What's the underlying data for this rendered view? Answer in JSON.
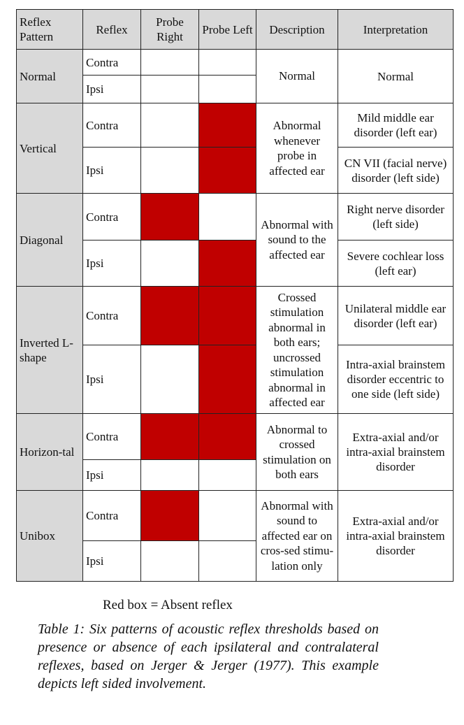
{
  "headers": [
    "Reflex Pattern",
    "Reflex",
    "Probe Right",
    "Probe Left",
    "Description",
    "Interpretation"
  ],
  "colors": {
    "absent": "#c00000",
    "header_bg": "#d9d9d9"
  },
  "rows": [
    {
      "pattern": "Normal",
      "reflex": "Contra",
      "right_absent": false,
      "left_absent": false,
      "desc": "Normal",
      "interp": "Normal"
    },
    {
      "reflex": "Ipsi",
      "right_absent": false,
      "left_absent": false
    },
    {
      "pattern": "Vertical",
      "reflex": "Contra",
      "right_absent": false,
      "left_absent": true,
      "desc": "Abnormal whenever probe in affected ear",
      "interp": "Mild middle ear disorder (left ear)"
    },
    {
      "reflex": "Ipsi",
      "right_absent": false,
      "left_absent": true,
      "interp": "CN VII (facial nerve) disorder (left side)"
    },
    {
      "pattern": "Diagonal",
      "reflex": "Contra",
      "right_absent": true,
      "left_absent": false,
      "desc": "Abnormal with sound to the affected ear",
      "interp": "Right nerve disorder (left side)"
    },
    {
      "reflex": "Ipsi",
      "right_absent": false,
      "left_absent": true,
      "interp": "Severe cochlear loss (left ear)"
    },
    {
      "pattern": "Inverted L-shape",
      "reflex": "Contra",
      "right_absent": true,
      "left_absent": true,
      "desc": "Crossed stimulation abnormal in both ears; uncrossed stimulation abnormal in affected ear",
      "interp": "Unilateral middle ear disorder (left ear)"
    },
    {
      "reflex": "Ipsi",
      "right_absent": false,
      "left_absent": true,
      "interp": "Intra-axial brainstem disorder eccentric to one side (left side)"
    },
    {
      "pattern": "Horizon-tal",
      "reflex": "Contra",
      "right_absent": true,
      "left_absent": true,
      "desc": "Abnormal to crossed stimulation on both ears",
      "interp": "Extra-axial and/or intra-axial brainstem disorder"
    },
    {
      "reflex": "Ipsi",
      "right_absent": false,
      "left_absent": false
    },
    {
      "pattern": "Unibox",
      "reflex": "Contra",
      "right_absent": true,
      "left_absent": false,
      "desc": "Abnormal with sound to affected ear on cros-sed stimu-lation only",
      "interp": "Extra-axial and/or intra-axial brainstem disorder"
    },
    {
      "reflex": "Ipsi",
      "right_absent": false,
      "left_absent": false
    }
  ],
  "legend": "Red box =  Absent reflex",
  "caption": "Table 1: Six patterns of acoustic reflex thresholds based on presence or absence of each ipsilateral and contralateral reflexes, based on Jerger & Jerger (1977). This example depicts left sided involvement."
}
